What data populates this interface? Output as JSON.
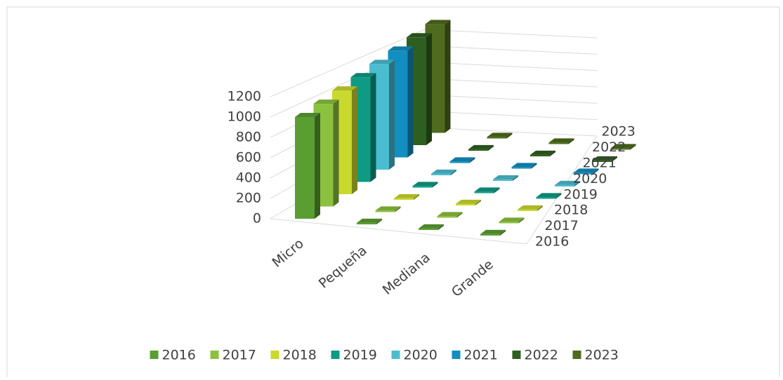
{
  "chart_data": {
    "type": "bar3d",
    "categories": [
      "Micro",
      "Pequeña",
      "Mediana",
      "Grande"
    ],
    "series": [
      {
        "name": "2016",
        "color": "#5a9e32",
        "values": [
          1000,
          15,
          15,
          15
        ]
      },
      {
        "name": "2017",
        "color": "#8cc13f",
        "values": [
          1010,
          15,
          15,
          15
        ]
      },
      {
        "name": "2018",
        "color": "#c9d92e",
        "values": [
          1020,
          15,
          15,
          15
        ]
      },
      {
        "name": "2019",
        "color": "#0e9b83",
        "values": [
          1030,
          15,
          15,
          15
        ]
      },
      {
        "name": "2020",
        "color": "#4bbdd0",
        "values": [
          1040,
          15,
          15,
          15
        ]
      },
      {
        "name": "2021",
        "color": "#128ec0",
        "values": [
          1050,
          15,
          15,
          15
        ]
      },
      {
        "name": "2022",
        "color": "#2f5f20",
        "values": [
          1060,
          15,
          15,
          15
        ]
      },
      {
        "name": "2023",
        "color": "#4f6b1d",
        "values": [
          1070,
          15,
          15,
          15
        ]
      }
    ],
    "ylim": [
      0,
      1200
    ],
    "yticks": [
      0,
      200,
      400,
      600,
      800,
      1000,
      1200
    ],
    "grid": true,
    "legend": "bottom"
  }
}
